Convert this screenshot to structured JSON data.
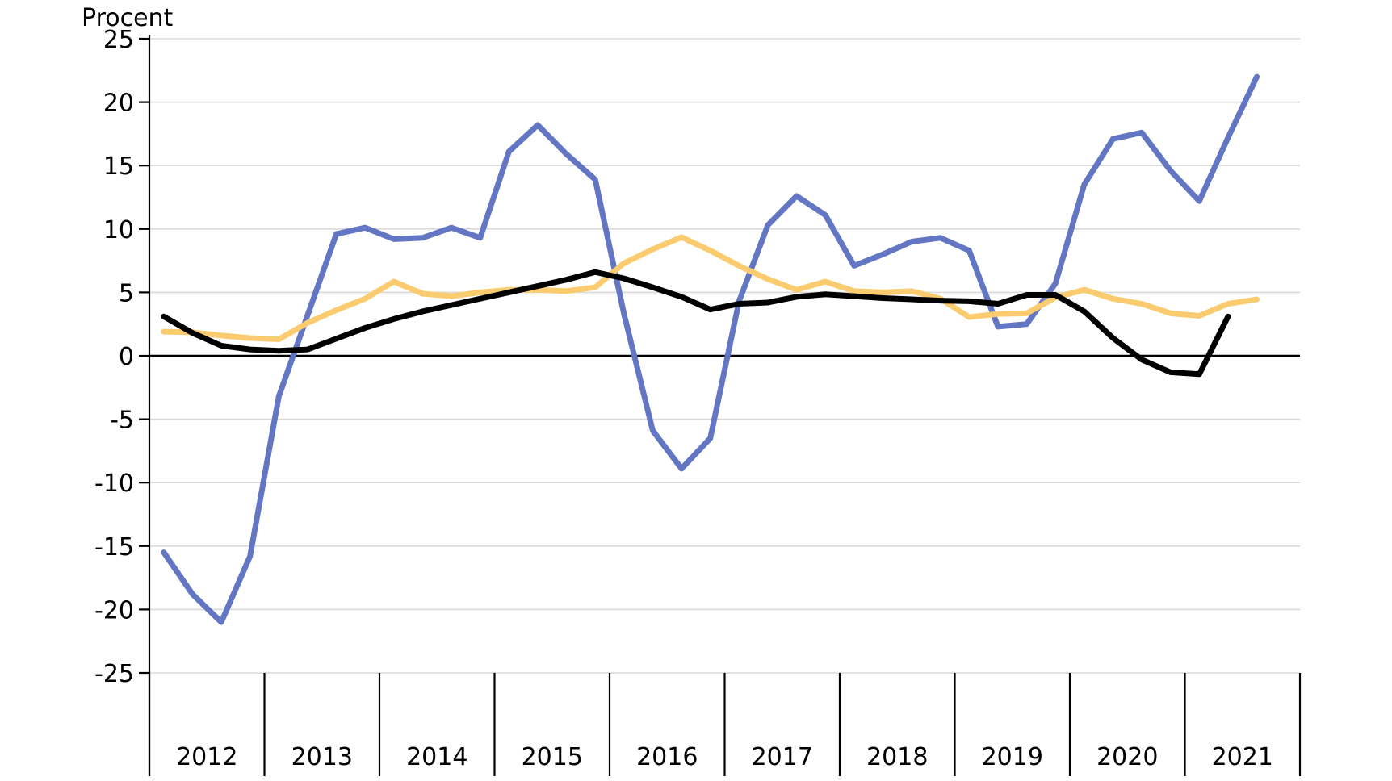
{
  "chart_data": {
    "type": "line",
    "title": "",
    "ylabel": "Procent",
    "xlabel": "",
    "grid": true,
    "legend_position": "none",
    "ylim": [
      -25,
      25
    ],
    "ytick_step": 5,
    "ytick_labels": [
      "25",
      "20",
      "15",
      "10",
      "5",
      "0",
      "-5",
      "-10",
      "-15",
      "-20",
      "-25"
    ],
    "ytick_values": [
      25,
      20,
      15,
      10,
      5,
      0,
      -5,
      -10,
      -15,
      -20,
      -25
    ],
    "x_year_labels": [
      "2012",
      "2013",
      "2014",
      "2015",
      "2016",
      "2017",
      "2018",
      "2019",
      "2020",
      "2021"
    ],
    "points_per_year": 4,
    "x_frequency": "quarterly",
    "colors": {
      "blue": "#6376C4",
      "yellow": "#FACC6F",
      "black": "#000000",
      "gridline": "#D9D9D9",
      "axis": "#000000"
    },
    "series": [
      {
        "name": "blue-line",
        "color": "#6376C4",
        "values": [
          -15.5,
          -18.8,
          -21.0,
          -15.8,
          -3.2,
          3.2,
          9.6,
          10.1,
          9.2,
          9.3,
          10.1,
          9.3,
          16.1,
          18.2,
          15.9,
          13.9,
          3.3,
          -5.9,
          -8.9,
          -6.5,
          4.3,
          10.3,
          12.6,
          11.1,
          7.1,
          8.0,
          9.0,
          9.3,
          8.3,
          2.3,
          2.5,
          5.7,
          13.5,
          17.1,
          17.6,
          14.6,
          12.2,
          17.2,
          22.0,
          null
        ]
      },
      {
        "name": "yellow-line",
        "color": "#FACC6F",
        "values": [
          1.9,
          1.85,
          1.6,
          1.4,
          1.3,
          2.6,
          3.6,
          4.5,
          5.85,
          4.9,
          4.7,
          5.0,
          5.2,
          5.2,
          5.1,
          5.4,
          7.3,
          8.4,
          9.35,
          8.3,
          7.1,
          6.05,
          5.2,
          5.85,
          5.1,
          5.0,
          5.1,
          4.5,
          3.05,
          3.3,
          3.35,
          4.6,
          5.2,
          4.5,
          4.1,
          3.35,
          3.15,
          4.1,
          4.45,
          null
        ]
      },
      {
        "name": "black-line",
        "color": "#000000",
        "values": [
          3.1,
          1.8,
          0.8,
          0.5,
          0.4,
          0.5,
          1.35,
          2.2,
          2.9,
          3.5,
          4.0,
          4.5,
          5.0,
          5.5,
          6.0,
          6.6,
          6.1,
          5.4,
          4.65,
          3.65,
          4.1,
          4.2,
          4.65,
          4.85,
          4.7,
          4.55,
          4.45,
          4.35,
          4.3,
          4.1,
          4.8,
          4.8,
          3.5,
          1.4,
          -0.3,
          -1.3,
          -1.45,
          3.1,
          null,
          null
        ]
      }
    ]
  }
}
